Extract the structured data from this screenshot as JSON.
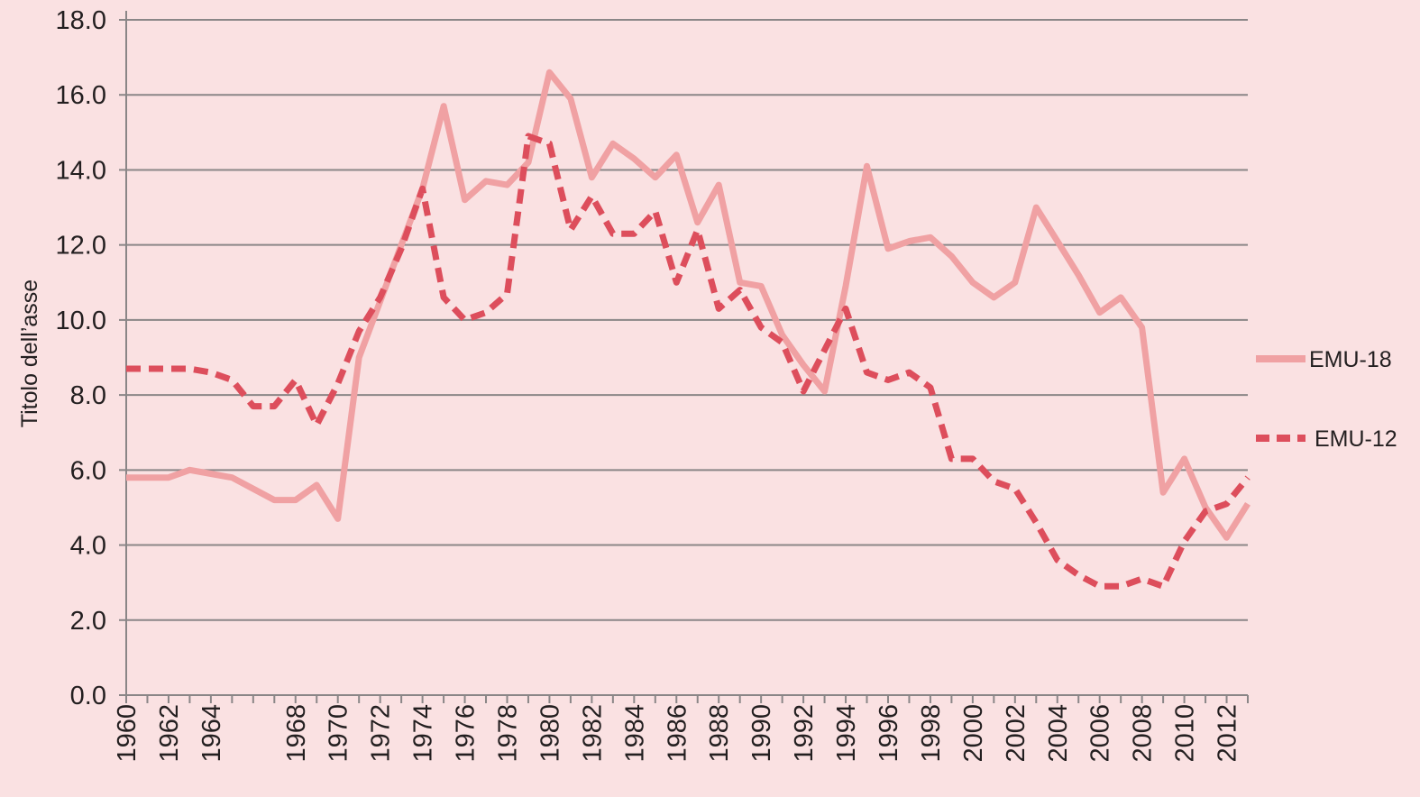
{
  "chart_data": {
    "type": "line",
    "title": "",
    "xlabel": "",
    "ylabel": "Titolo dell’asse",
    "ylim": [
      0,
      18
    ],
    "yticks": [
      "0.0",
      "2.0",
      "4.0",
      "6.0",
      "8.0",
      "10.0",
      "12.0",
      "14.0",
      "16.0",
      "18.0"
    ],
    "grid": "horizontal",
    "legend_position": "right",
    "x": [
      1960,
      1961,
      1962,
      1963,
      1964,
      1965,
      1966,
      1967,
      1968,
      1969,
      1970,
      1971,
      1972,
      1973,
      1974,
      1975,
      1976,
      1977,
      1978,
      1979,
      1980,
      1981,
      1982,
      1983,
      1984,
      1985,
      1986,
      1987,
      1988,
      1989,
      1990,
      1991,
      1992,
      1993,
      1994,
      1995,
      1996,
      1997,
      1998,
      1999,
      2000,
      2001,
      2002,
      2003,
      2004,
      2005,
      2006,
      2007,
      2008,
      2009,
      2010,
      2011,
      2012,
      2013
    ],
    "categories": [
      "1960",
      "1962",
      "1964",
      "1968",
      "1970",
      "1972",
      "1974",
      "1976",
      "1978",
      "1980",
      "1982",
      "1984",
      "1986",
      "1988",
      "1990",
      "1992",
      "1994",
      "1996",
      "1998",
      "2000",
      "2002",
      "2004",
      "2006",
      "2008",
      "2010",
      "2012"
    ],
    "series": [
      {
        "name": "EMU-18",
        "style": "solid",
        "color": "#f0a1a3",
        "values": [
          5.8,
          5.8,
          5.8,
          6.0,
          5.9,
          5.8,
          5.5,
          5.2,
          5.2,
          5.6,
          4.7,
          9.0,
          10.5,
          12.0,
          13.5,
          15.7,
          13.2,
          13.7,
          13.6,
          14.2,
          16.6,
          15.9,
          13.8,
          14.7,
          14.3,
          13.8,
          14.4,
          12.6,
          13.6,
          11.0,
          10.9,
          9.6,
          8.8,
          8.1,
          10.9,
          14.1,
          11.9,
          12.1,
          12.2,
          11.7,
          11.0,
          10.6,
          11.0,
          13.0,
          12.1,
          11.2,
          10.2,
          10.6,
          9.8,
          5.4,
          6.3,
          5.0,
          4.2,
          5.1
        ]
      },
      {
        "name": "EMU-12",
        "style": "dashed",
        "color": "#dd4e5c",
        "values": [
          8.7,
          8.7,
          8.7,
          8.7,
          8.6,
          8.4,
          7.7,
          7.7,
          8.4,
          7.2,
          8.3,
          9.7,
          10.6,
          11.9,
          13.5,
          10.6,
          10.0,
          10.2,
          10.7,
          14.9,
          14.7,
          12.4,
          13.3,
          12.3,
          12.3,
          12.9,
          11.0,
          12.4,
          10.3,
          10.8,
          9.8,
          9.4,
          8.1,
          9.2,
          10.3,
          8.6,
          8.4,
          8.6,
          8.2,
          6.3,
          6.3,
          5.7,
          5.5,
          4.6,
          3.6,
          3.2,
          2.9,
          2.9,
          3.1,
          2.9,
          4.1,
          4.9,
          5.1,
          5.8
        ]
      }
    ]
  }
}
